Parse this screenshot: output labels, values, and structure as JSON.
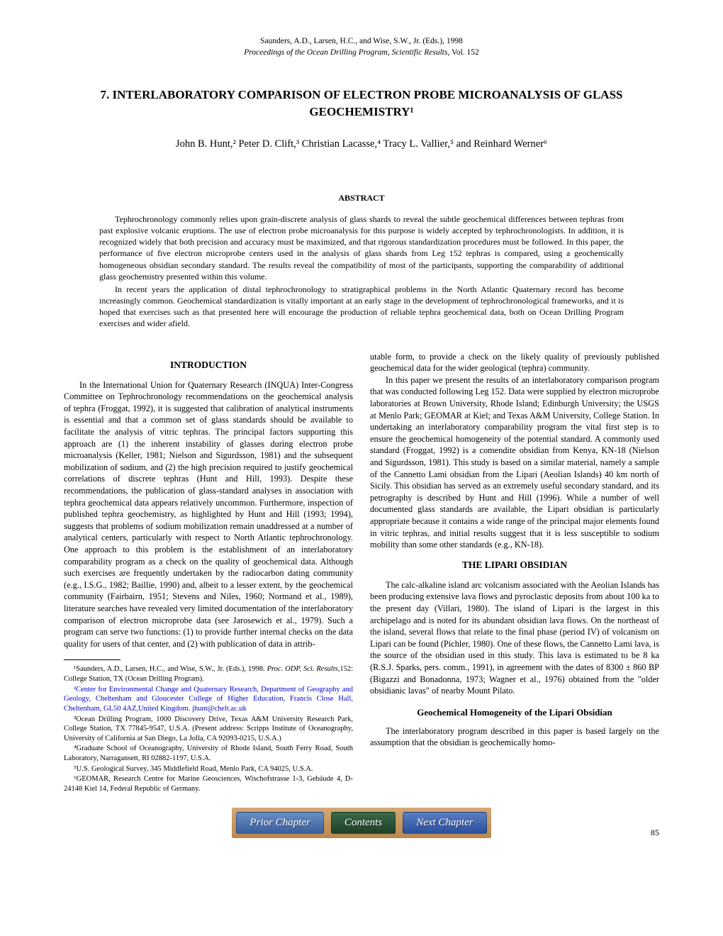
{
  "header": {
    "editors_line": "Saunders, A.D., Larsen, H.C., and Wise, S.W., Jr. (Eds.), 1998",
    "proceedings_line": "Proceedings of the Ocean Drilling Program, Scientific Results,",
    "volume": " Vol. 152"
  },
  "title": "7. INTERLABORATORY COMPARISON OF ELECTRON PROBE MICROANALYSIS OF GLASS GEOCHEMISTRY¹",
  "authors": "John B. Hunt,² Peter D. Clift,³ Christian Lacasse,⁴ Tracy L. Vallier,⁵ and Reinhard Werner⁶",
  "abstract": {
    "heading": "ABSTRACT",
    "p1": "Tephrochronology commonly relies upon grain-discrete analysis of glass shards to reveal the subtle geochemical differences between tephras from past explosive volcanic eruptions. The use of electron probe microanalysis for this purpose is widely accepted by tephrochronologists. In addition, it is recognized widely that both precision and accuracy must be maximized, and that rigorous standardization procedures must be followed. In this paper, the performance of five electron microprobe centers used in the analysis of glass shards from Leg 152 tephras is compared, using a geochemically homogeneous obsidian secondary standard. The results reveal the compatibility of most of the participants, supporting the comparability of additional glass geochemistry presented within this volume.",
    "p2": "In recent years the application of distal tephrochronology to stratigraphical problems in the North Atlantic Quaternary record has become increasingly common. Geochemical standardization is vitally important at an early stage in the development of tephrochronological frameworks, and it is hoped that exercises such as that presented here will encourage the production of reliable tephra geochemical data, both on Ocean Drilling Program exercises and wider afield."
  },
  "sections": {
    "introduction": {
      "heading": "INTRODUCTION",
      "left_p1": "In the International Union for Quaternary Research (INQUA) Inter-Congress Committee on Tephrochronology recommendations on the geochemical analysis of tephra (Froggat, 1992), it is suggested that calibration of analytical instruments is essential and that a common set of glass standards should be available to facilitate the analysis of vitric tephras. The principal factors supporting this approach are (1) the inherent instability of glasses during electron probe microanalysis (Keller, 1981; Nielson and Sigurdsson, 1981) and the subsequent mobilization of sodium, and (2) the high precision required to justify geochemical correlations of discrete tephras (Hunt and Hill, 1993). Despite these recommendations, the publication of glass-standard analyses in association with tephra geochemical data appears relatively uncommon. Furthermore, inspection of published tephra geochemistry, as highlighted by Hunt and Hill (1993; 1994), suggests that problems of sodium mobilization remain unaddressed at a number of analytical centers, particularly with respect to North Atlantic tephrochronology. One approach to this problem is the establishment of an interlaboratory comparability program as a check on the quality of geochemical data. Although such exercises are frequently undertaken by the radiocarbon dating community (e.g., I.S.G., 1982; Baillie, 1990) and, albeit to a lesser extent, by the geochemical community (Fairbairn, 1951; Stevens and Niles, 1960; Normand et al., 1989), literature searches have revealed very limited documentation of the interlaboratory comparison of electron microprobe data (see Jarosewich et al., 1979). Such a program can serve two functions: (1) to provide further internal checks on the data quality for users of that center, and (2) with publication of data in attrib-",
      "right_p1": "utable form, to provide a check on the likely quality of previously published geochemical data for the wider geological (tephra) community.",
      "right_p2": "In this paper we present the results of an interlaboratory comparison program that was conducted following Leg 152. Data were supplied by electron microprobe laboratories at Brown University, Rhode Island; Edinburgh University; the USGS at Menlo Park; GEOMAR at Kiel; and Texas A&M University, College Station. In undertaking an interlaboratory comparability program the vital first step is to ensure the geochemical homogeneity of the potential standard. A commonly used standard (Froggat, 1992) is a comendite obsidian from Kenya, KN-18 (Nielson and Sigurdsson, 1981). This study is based on a similar material, namely a sample of the Cannetto Lami obsidian from the Lipari (Aeolian Islands) 40 km north of Sicily. This obsidian has served as an extremely useful secondary standard, and its petrography is described by Hunt and Hill (1996). While a number of well documented glass standards are available, the Lipari obsidian is particularly appropriate because it contains a wide range of the principal major elements found in vitric tephras, and initial results suggest that it is less susceptible to sodium mobility than some other standards (e.g., KN-18)."
    },
    "lipari": {
      "heading": "THE LIPARI OBSIDIAN",
      "p1": "The calc-alkaline island arc volcanism associated with the Aeolian Islands has been producing extensive lava flows and pyroclastic deposits from about 100 ka to the present day (Villari, 1980). The island of Lipari is the largest in this archipelago and is noted for its abundant obsidian lava flows. On the northeast of the island, several flows that relate to the final phase (period IV) of volcanism on Lipari can be found (Pichler, 1980). One of these flows, the Cannetto Lami lava, is the source of the obsidian used in this study. This lava is estimated to be 8 ka (R.S.J. Sparks, pers. comm., 1991), in agreement with the dates of 8300 ± 860 BP (Bigazzi and Bonadonna, 1973; Wagner et al., 1976) obtained from the \"older obsidianic lavas\" of nearby Mount Pilato."
    },
    "homogeneity": {
      "heading": "Geochemical Homogeneity of the Lipari Obsidian",
      "p1": "The interlaboratory program described in this paper is based largely on the assumption that the obsidian is geochemically homo-"
    }
  },
  "footnotes": {
    "fn1_a": "¹Saunders, A.D., Larsen, H.C., and Wise, S.W., Jr. (Eds.), 1998. ",
    "fn1_b": "Proc. ODP, Sci. Results,",
    "fn1_c": "152: College Station, TX (Ocean Drilling Program).",
    "fn2": "²Center for Environmental Change and Quaternary Research, Department of Geography and Geology, Cheltenham and Gloucester College of Higher Education, Francis Close Hall, Cheltenham, GL50 4AZ,United Kingdom. jhunt@chelt.ac.uk",
    "fn3": "³Ocean Drilling Program, 1000 Discovery Drive, Texas A&M University Research Park, College Station, TX 77845-9547, U.S.A. (Present address: Scripps Institute of Oceanography, University of California at San Diego, La Jolla, CA 92093-0215, U.S.A.)",
    "fn4": "⁴Graduate School of Oceanography, University of Rhode Island, South Ferry Road, South Laboratory, Narragansett, RI 02882-1197, U.S.A.",
    "fn5": "⁵U.S. Geological Survey, 345 Middlefield Road, Menlo Park, CA 94025, U.S.A.",
    "fn6": "⁶GEOMAR, Research Centre for Marine Geosciences, Wischofstrasse 1-3, Gebäude 4, D-24148 Kiel 14, Federal Republic of Germany."
  },
  "page_number": "85",
  "nav": {
    "prior": "Prior Chapter",
    "contents": "Contents",
    "next": "Next Chapter"
  },
  "colors": {
    "link_color": "#0000cc",
    "nav_bg_gradient": [
      "#d4a876",
      "#b88850"
    ],
    "nav_prior_bg": [
      "#6a8fc4",
      "#3a5f9e"
    ],
    "nav_contents_bg": [
      "#3a6a4a",
      "#1e4028"
    ],
    "nav_next_bg": [
      "#5a7fc4",
      "#2a4f9e"
    ],
    "text_color": "#000000",
    "background": "#ffffff"
  },
  "typography": {
    "body_font": "Times New Roman",
    "title_size_pt": 13,
    "body_size_pt": 9.5,
    "abstract_size_pt": 9,
    "footnote_size_pt": 8
  }
}
